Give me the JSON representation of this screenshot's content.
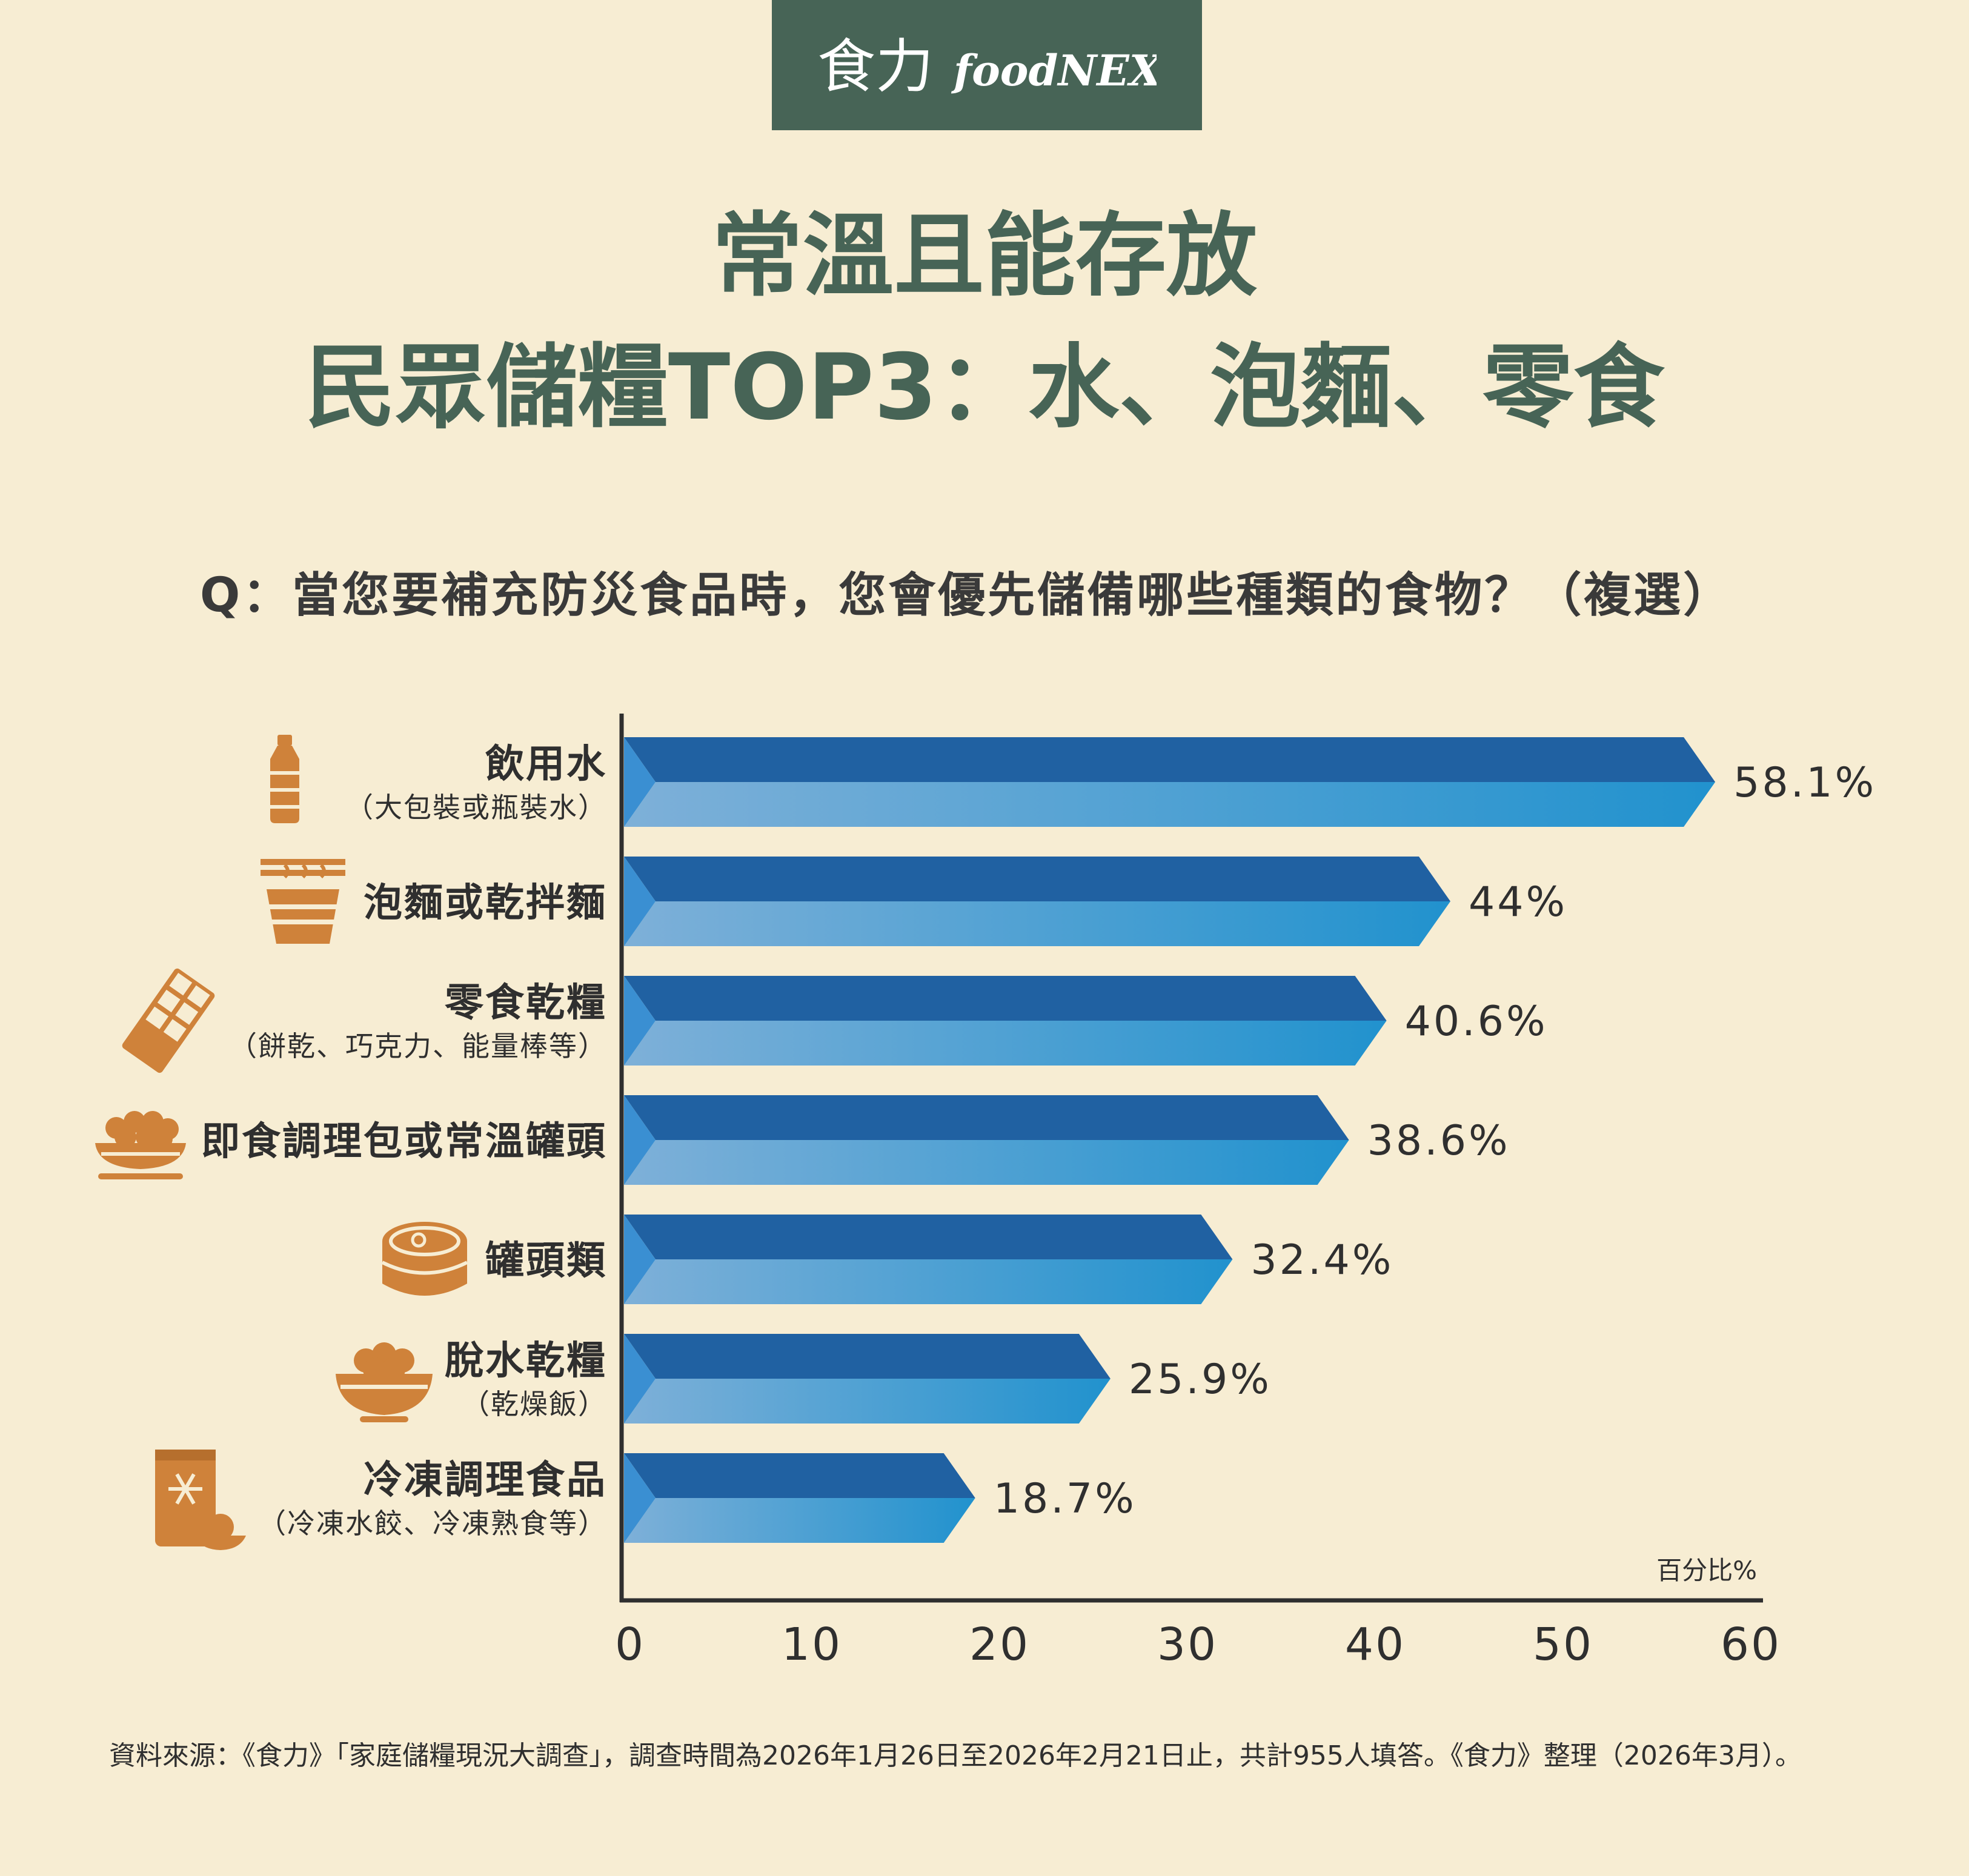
{
  "logo": {
    "text_cn": "食力",
    "text_en": "foodNEXT"
  },
  "header": {
    "title_line1": "常溫且能存放",
    "title_line2": "民眾儲糧TOP3：水、泡麵、零食"
  },
  "question": "Q：當您要補充防災食品時，您會優先儲備哪些種類的食物？（複選）",
  "colors": {
    "background": "#f7edd3",
    "brand_green": "#476456",
    "bar_dark": "#2061a2",
    "bar_light_start": "#7eb0d8",
    "bar_light_end": "#2192ce",
    "icon_orange": "#cf823a"
  },
  "chart_data": {
    "type": "bar",
    "orientation": "horizontal",
    "categories": [
      {
        "label": "飲用水",
        "sublabel": "（大包裝或瓶裝水）",
        "icon": "water-bottle-icon"
      },
      {
        "label": "泡麵或乾拌麵",
        "sublabel": "",
        "icon": "noodle-cup-icon"
      },
      {
        "label": "零食乾糧",
        "sublabel": "（餅乾、巧克力、能量棒等）",
        "icon": "chocolate-bar-icon"
      },
      {
        "label": "即食調理包或常溫罐頭",
        "sublabel": "",
        "icon": "food-plate-icon"
      },
      {
        "label": "罐頭類",
        "sublabel": "",
        "icon": "tin-can-icon"
      },
      {
        "label": "脫水乾糧",
        "sublabel": "（乾燥飯）",
        "icon": "rice-bowl-icon"
      },
      {
        "label": "冷凍調理食品",
        "sublabel": "（冷凍水餃、冷凍熟食等）",
        "icon": "frozen-food-icon"
      }
    ],
    "values": [
      58.1,
      44,
      40.6,
      38.6,
      32.4,
      25.9,
      18.7
    ],
    "value_labels": [
      "58.1%",
      "44%",
      "40.6%",
      "38.6%",
      "32.4%",
      "25.9%",
      "18.7%"
    ],
    "xlim": [
      0,
      60
    ],
    "xticks": [
      "0",
      "10",
      "20",
      "30",
      "40",
      "50",
      "60"
    ],
    "xlabel": "百分比%",
    "grid": false
  },
  "source": "資料來源：《食力》「家庭儲糧現況大調查」，調查時間為2026年1月26日至2026年2月21日止，共計955人填答。《食力》整理（2026年3月）。"
}
